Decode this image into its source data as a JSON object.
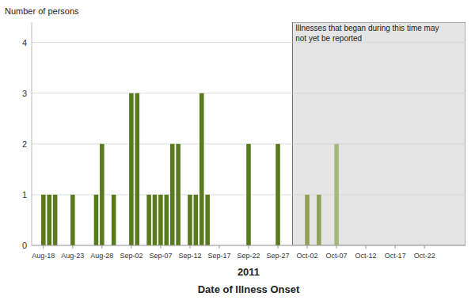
{
  "chart_data": {
    "type": "bar",
    "ylabel": "Number of persons",
    "xlabel_year": "2011",
    "xlabel": "Date of Illness Onset",
    "x": [
      0,
      1,
      2,
      5,
      9,
      10,
      12,
      15,
      16,
      18,
      19,
      20,
      21,
      22,
      23,
      25,
      26,
      27,
      28,
      35,
      40,
      45,
      47,
      50
    ],
    "values": [
      1,
      1,
      1,
      1,
      1,
      2,
      1,
      3,
      3,
      1,
      1,
      1,
      1,
      2,
      2,
      1,
      1,
      3,
      1,
      2,
      2,
      1,
      1,
      2
    ],
    "colors": [
      "#5a7a1e",
      "#5a7a1e",
      "#5a7a1e",
      "#5a7a1e",
      "#5a7a1e",
      "#5a7a1e",
      "#5a7a1e",
      "#5a7a1e",
      "#5a7a1e",
      "#5a7a1e",
      "#5a7a1e",
      "#5a7a1e",
      "#5a7a1e",
      "#5a7a1e",
      "#5a7a1e",
      "#5a7a1e",
      "#5a7a1e",
      "#5a7a1e",
      "#5a7a1e",
      "#5a7a1e",
      "#5a7a1e",
      "#8fa05a",
      "#8fa05a",
      "#a8b87a"
    ],
    "xlim": [
      -2,
      72
    ],
    "xticks": [
      {
        "value": 0,
        "label": "Aug-18"
      },
      {
        "value": 5,
        "label": "Aug-23"
      },
      {
        "value": 10,
        "label": "Aug-28"
      },
      {
        "value": 15,
        "label": "Sep-02"
      },
      {
        "value": 20,
        "label": "Sep-07"
      },
      {
        "value": 25,
        "label": "Sep-12"
      },
      {
        "value": 30,
        "label": "Sep-17"
      },
      {
        "value": 35,
        "label": "Sep-22"
      },
      {
        "value": 40,
        "label": "Sep-27"
      },
      {
        "value": 45,
        "label": "Oct-02"
      },
      {
        "value": 50,
        "label": "Oct-07"
      },
      {
        "value": 55,
        "label": "Oct-12"
      },
      {
        "value": 60,
        "label": "Oct-17"
      },
      {
        "value": 65,
        "label": "Oct-22"
      }
    ],
    "ylim": [
      0,
      4.4
    ],
    "yticks": [
      0,
      1,
      2,
      3,
      4
    ],
    "grid": true,
    "shaded_range": [
      42.5,
      72
    ],
    "shade_color": "#e5e5e5",
    "annotations": [
      {
        "text": "Illnesses that began during this time may\nnot yet be reported",
        "x": 43.0,
        "y": 4.38
      }
    ]
  }
}
